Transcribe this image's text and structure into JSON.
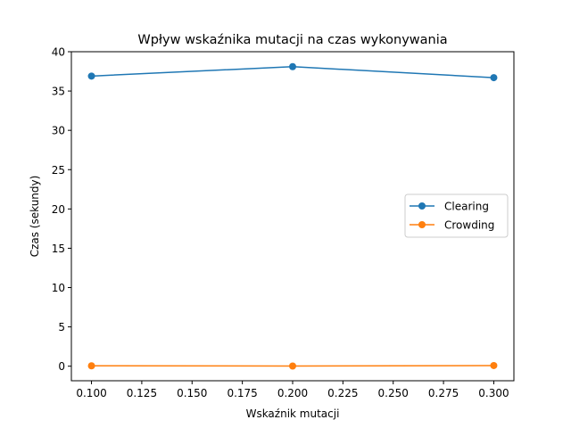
{
  "chart_data": {
    "type": "line",
    "title": "Wpływ wskaźnika mutacji na czas wykonywania",
    "xlabel": "Wskaźnik mutacji",
    "ylabel": "Czas (sekundy)",
    "x": [
      0.1,
      0.2,
      0.3
    ],
    "xlim": [
      0.09,
      0.31
    ],
    "ylim": [
      -1.85,
      40
    ],
    "xticks": [
      0.1,
      0.125,
      0.15,
      0.175,
      0.2,
      0.225,
      0.25,
      0.275,
      0.3
    ],
    "xtick_labels": [
      "0.100",
      "0.125",
      "0.150",
      "0.175",
      "0.200",
      "0.225",
      "0.250",
      "0.275",
      "0.300"
    ],
    "yticks": [
      0,
      5,
      10,
      15,
      20,
      25,
      30,
      35,
      40
    ],
    "ytick_labels": [
      "0",
      "5",
      "10",
      "15",
      "20",
      "25",
      "30",
      "35",
      "40"
    ],
    "grid": false,
    "legend_position": "center-right",
    "series": [
      {
        "name": "Clearing",
        "color": "#1f77b4",
        "marker": "circle",
        "values": [
          36.9,
          38.1,
          36.7
        ]
      },
      {
        "name": "Crowding",
        "color": "#ff7f0e",
        "marker": "circle",
        "values": [
          0.05,
          0.02,
          0.08
        ]
      }
    ]
  }
}
